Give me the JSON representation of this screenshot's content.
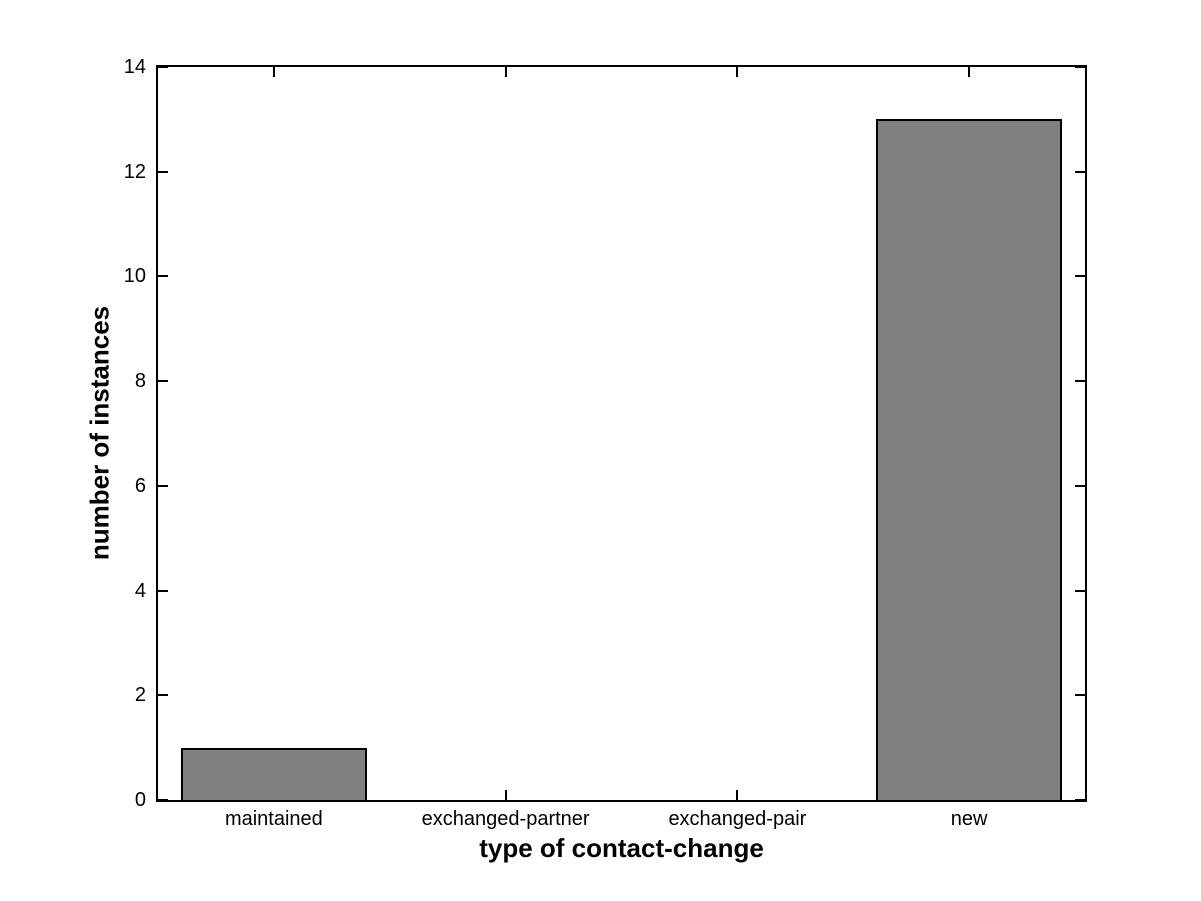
{
  "chart_data": {
    "type": "bar",
    "categories": [
      "maintained",
      "exchanged-partner",
      "exchanged-pair",
      "new"
    ],
    "values": [
      1,
      0,
      0,
      13
    ],
    "xlabel": "type of contact-change",
    "ylabel": "number of instances",
    "ylim": [
      0,
      14
    ],
    "yticks": [
      0,
      2,
      4,
      6,
      8,
      10,
      12,
      14
    ],
    "bar_width_fraction": 0.8,
    "bar_color": "#808080",
    "bar_edge_color": "#000000",
    "axis_color": "#000000",
    "background_color": "#ffffff",
    "grid": false,
    "legend": null,
    "tick_direction": "in",
    "mirrored_ticks": true
  }
}
